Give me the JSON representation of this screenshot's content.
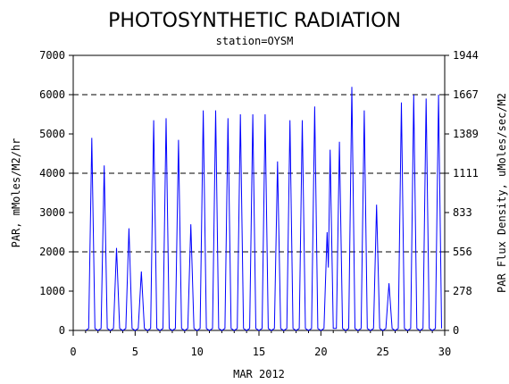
{
  "chart_data": {
    "type": "line",
    "title": "PHOTOSYNTHETIC RADIATION",
    "subtitle": "station=OYSM",
    "xlabel": "MAR 2012",
    "ylabel": "PAR, mMoles/M2/hr",
    "y2label": "PAR Flux Density, uMoles/sec/M2",
    "xlim": [
      0,
      30
    ],
    "ylim": [
      0,
      7000
    ],
    "x_ticks": [
      "0",
      "5",
      "10",
      "15",
      "20",
      "25",
      "30"
    ],
    "y_ticks": [
      "0",
      "1000",
      "2000",
      "3000",
      "4000",
      "5000",
      "6000",
      "7000"
    ],
    "y2_ticks": [
      "0",
      "278",
      "556",
      "833",
      "1111",
      "1389",
      "1667",
      "1944"
    ],
    "grid": "dashed horizontal at 2000, 4000, 6000",
    "line_color": "#0000ff",
    "series": [
      {
        "x": [
          1.0,
          1.25,
          1.5,
          1.75,
          2.0,
          2.25,
          2.5,
          2.75,
          3.0,
          3.25,
          3.5,
          3.75,
          4.0,
          4.25,
          4.5,
          4.75,
          5.0,
          5.25,
          5.5,
          5.75,
          6.0,
          6.25,
          6.5,
          6.75,
          7.0,
          7.25,
          7.5,
          7.75,
          8.0,
          8.25,
          8.5,
          8.75,
          9.0,
          9.25,
          9.5,
          9.75,
          10.0,
          10.25,
          10.5,
          10.75,
          11.0,
          11.25,
          11.5,
          11.75,
          12.0,
          12.25,
          12.5,
          12.75,
          13.0,
          13.25,
          13.5,
          13.75,
          14.0,
          14.25,
          14.5,
          14.75,
          15.0,
          15.25,
          15.5,
          15.75,
          16.0,
          16.25,
          16.5,
          16.75,
          17.0,
          17.25,
          17.5,
          17.75,
          18.0,
          18.25,
          18.5,
          18.75,
          19.0,
          19.25,
          19.5,
          19.75,
          20.0,
          20.25,
          20.5,
          20.6,
          20.75,
          21.0,
          21.25,
          21.5,
          21.75,
          22.0,
          22.25,
          22.5,
          22.75,
          23.0,
          23.25,
          23.5,
          23.75,
          24.0,
          24.25,
          24.5,
          24.75,
          25.0,
          25.25,
          25.5,
          25.75,
          26.0,
          26.25,
          26.5,
          26.75,
          27.0,
          27.25,
          27.5,
          27.75,
          28.0,
          28.25,
          28.5,
          28.75,
          29.0,
          29.25,
          29.5,
          29.75
        ],
        "y": [
          0,
          50,
          4900,
          50,
          0,
          50,
          4200,
          50,
          0,
          50,
          2100,
          50,
          0,
          50,
          2600,
          50,
          0,
          50,
          1500,
          50,
          0,
          50,
          5350,
          50,
          0,
          50,
          5400,
          50,
          0,
          50,
          4850,
          50,
          0,
          50,
          2700,
          50,
          0,
          50,
          5600,
          50,
          0,
          50,
          5600,
          50,
          0,
          50,
          5400,
          50,
          0,
          50,
          5500,
          50,
          0,
          50,
          5500,
          50,
          0,
          50,
          5500,
          50,
          0,
          50,
          4300,
          50,
          0,
          50,
          5350,
          50,
          0,
          50,
          5350,
          50,
          0,
          50,
          5700,
          50,
          0,
          50,
          2500,
          1600,
          4600,
          50,
          50,
          4800,
          50,
          0,
          50,
          6200,
          50,
          0,
          50,
          5600,
          50,
          0,
          50,
          3200,
          50,
          0,
          50,
          1200,
          50,
          0,
          50,
          5800,
          50,
          0,
          50,
          6000,
          50,
          0,
          50,
          5900,
          50,
          0,
          50,
          6000,
          50
        ]
      }
    ]
  }
}
